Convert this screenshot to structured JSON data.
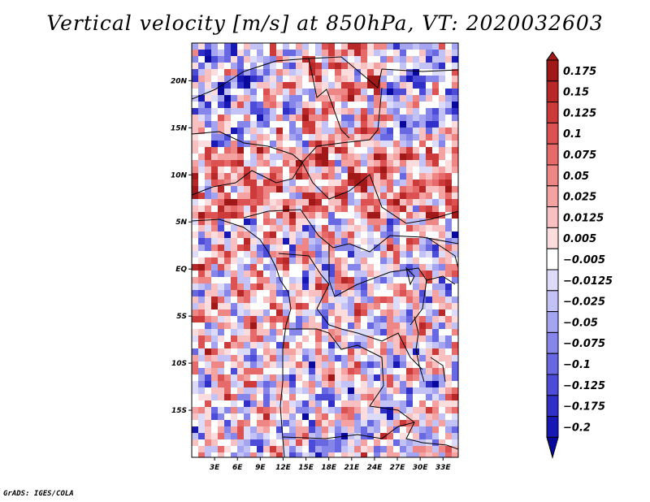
{
  "title": "Vertical velocity [m/s] at 850hPa, VT: 2020032603",
  "credit": "GrADS: IGES/COLA",
  "chart_data": {
    "type": "heatmap",
    "title": "Vertical velocity [m/s] at 850hPa, VT: 2020032603",
    "variable": "Vertical velocity",
    "units": "m/s",
    "level": "850hPa",
    "valid_time": "2020032603",
    "x_ticks": [
      "3E",
      "6E",
      "9E",
      "12E",
      "15E",
      "18E",
      "21E",
      "24E",
      "27E",
      "30E",
      "33E"
    ],
    "y_ticks": [
      "20N",
      "15N",
      "10N",
      "5N",
      "EQ",
      "5S",
      "10S",
      "15S"
    ],
    "xlim": [
      0,
      35
    ],
    "ylim": [
      -20,
      24
    ],
    "colorbar": {
      "levels": [
        "0.175",
        "0.15",
        "0.125",
        "0.1",
        "0.075",
        "0.05",
        "0.025",
        "0.0125",
        "0.005",
        "−0.005",
        "−0.0125",
        "−0.025",
        "−0.05",
        "−0.075",
        "−0.1",
        "−0.125",
        "−0.175",
        "−0.2"
      ],
      "colors": [
        "#a01818",
        "#b82828",
        "#cc3a3a",
        "#dc5252",
        "#e66a6a",
        "#ee8686",
        "#f4a2a2",
        "#f8c0c0",
        "#fcdcdc",
        "#ffffff",
        "#dcdcfa",
        "#c2c2f6",
        "#a4a4f0",
        "#8686ea",
        "#6868e2",
        "#4c4cd8",
        "#3030c8",
        "#1818b4",
        "#08089c"
      ]
    }
  }
}
